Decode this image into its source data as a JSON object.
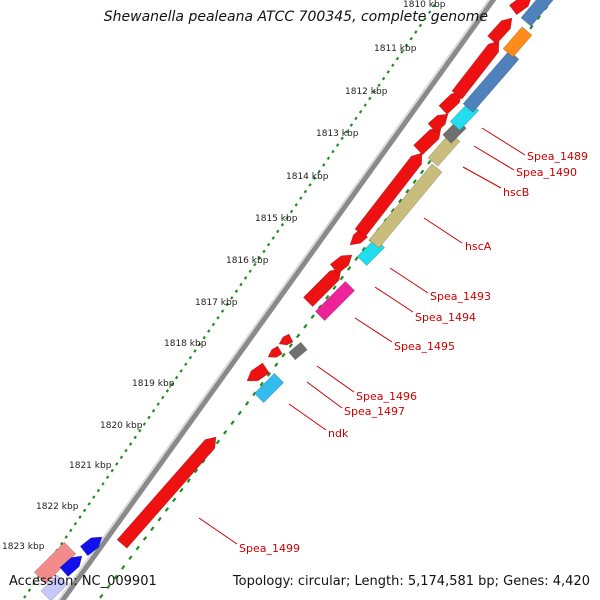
{
  "header": {
    "title": "Shewanella pealeana ATCC 700345, complete genome"
  },
  "footer": {
    "accession": "Accession: NC_009901",
    "topology": "Topology: circular; Length: 5,174,581 bp; Genes: 4,420"
  },
  "ticks": [
    {
      "label": "1810 kbp"
    },
    {
      "label": "1811 kbp"
    },
    {
      "label": "1812 kbp"
    },
    {
      "label": "1813 kbp"
    },
    {
      "label": "1814 kbp"
    },
    {
      "label": "1815 kbp"
    },
    {
      "label": "1816 kbp"
    },
    {
      "label": "1817 kbp"
    },
    {
      "label": "1818 kbp"
    },
    {
      "label": "1819 kbp"
    },
    {
      "label": "1820 kbp"
    },
    {
      "label": "1821 kbp"
    },
    {
      "label": "1822 kbp"
    },
    {
      "label": "1823 kbp"
    }
  ],
  "gene_labels": [
    {
      "label": "Spea_1489"
    },
    {
      "label": "Spea_1490"
    },
    {
      "label": "hscB"
    },
    {
      "label": "hscA"
    },
    {
      "label": "Spea_1493"
    },
    {
      "label": "Spea_1494"
    },
    {
      "label": "Spea_1495"
    },
    {
      "label": "Spea_1496"
    },
    {
      "label": "Spea_1497"
    },
    {
      "label": "ndk"
    },
    {
      "label": "Spea_1499"
    }
  ],
  "colors": {
    "backbone": "#8a8a8a",
    "forward_gene": "#ee1111",
    "steelblue": "#4f81bd",
    "orange": "#ff8c1a",
    "cyan": "#22ddee",
    "grey": "#707070",
    "khaki": "#c9bd7e",
    "magenta": "#ee2299",
    "lightblue": "#33bbee",
    "pink": "#f28c8c",
    "blue": "#1111ee",
    "tick_dots": "#1f8f1f",
    "label_red": "#cc0000"
  }
}
